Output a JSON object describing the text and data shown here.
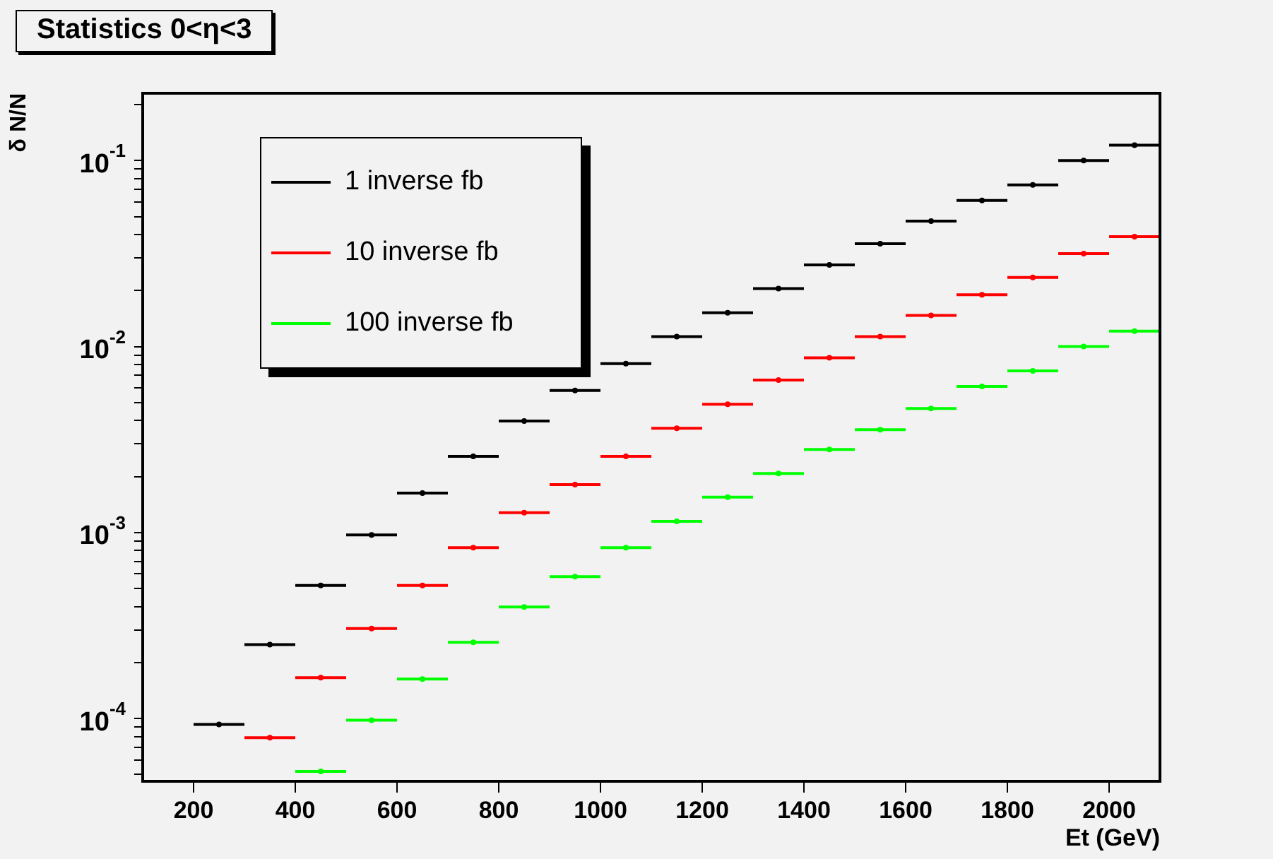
{
  "chart_data": {
    "type": "scatter",
    "title": "Statistics 0<η<3",
    "xlabel": "Et (GeV)",
    "ylabel": "δ N/N",
    "marker": "circle",
    "x": [
      250,
      350,
      450,
      550,
      650,
      750,
      850,
      950,
      1050,
      1150,
      1250,
      1350,
      1450,
      1550,
      1650,
      1750,
      1850,
      1950,
      2050
    ],
    "series": [
      {
        "name": "1 inverse fb",
        "color": "#000000",
        "values": [
          9.3e-05,
          0.00025,
          0.00052,
          0.00097,
          0.00163,
          0.00257,
          0.00398,
          0.0058,
          0.0081,
          0.0113,
          0.0152,
          0.0205,
          0.0275,
          0.0357,
          0.0472,
          0.061,
          0.074,
          0.1,
          0.121
        ],
        "xerrors": [
          50,
          50,
          50,
          50,
          50,
          50,
          50,
          50,
          50,
          50,
          50,
          50,
          50,
          50,
          50,
          50,
          50,
          50,
          50
        ]
      },
      {
        "name": "10 inverse fb",
        "color": "#ff0000",
        "values": [
          null,
          7.9e-05,
          0.000166,
          0.000305,
          0.00052,
          0.00083,
          0.00128,
          0.00181,
          0.00257,
          0.00364,
          0.0049,
          0.0066,
          0.0087,
          0.0113,
          0.0147,
          0.019,
          0.0235,
          0.0316,
          0.039
        ],
        "xerrors": [
          null,
          50,
          50,
          50,
          50,
          50,
          50,
          50,
          50,
          50,
          50,
          50,
          50,
          50,
          50,
          50,
          50,
          50,
          50
        ]
      },
      {
        "name": "100 inverse fb",
        "color": "#00ff00",
        "values": [
          null,
          null,
          5.2e-05,
          9.8e-05,
          0.000163,
          0.000257,
          0.000398,
          0.00058,
          0.00083,
          0.00115,
          0.00155,
          0.00208,
          0.0028,
          0.00357,
          0.00465,
          0.0061,
          0.0074,
          0.01,
          0.0121
        ],
        "xerrors": [
          null,
          null,
          50,
          50,
          50,
          50,
          50,
          50,
          50,
          50,
          50,
          50,
          50,
          50,
          50,
          50,
          50,
          50,
          50
        ]
      }
    ],
    "log": "y",
    "xlim": [
      100,
      2100
    ],
    "ylim": [
      4.6e-05,
      0.23
    ],
    "xticks": [
      200,
      400,
      600,
      800,
      1000,
      1200,
      1400,
      1600,
      1800,
      2000
    ],
    "yticks": [
      {
        "value": 5e-05,
        "label": null
      },
      {
        "value": 6e-05,
        "label": null
      },
      {
        "value": 7e-05,
        "label": null
      },
      {
        "value": 8e-05,
        "label": null
      },
      {
        "value": 9e-05,
        "label": null
      },
      {
        "value": 0.0001,
        "label": "10$^{-4}$"
      },
      {
        "value": 0.0002,
        "label": null
      },
      {
        "value": 0.0003,
        "label": null
      },
      {
        "value": 0.0004,
        "label": null
      },
      {
        "value": 0.0005,
        "label": null
      },
      {
        "value": 0.0006,
        "label": null
      },
      {
        "value": 0.0007,
        "label": null
      },
      {
        "value": 0.0008,
        "label": null
      },
      {
        "value": 0.0009,
        "label": null
      },
      {
        "value": 0.001,
        "label": "10$^{-3}$"
      },
      {
        "value": 0.002,
        "label": null
      },
      {
        "value": 0.003,
        "label": null
      },
      {
        "value": 0.004,
        "label": null
      },
      {
        "value": 0.005,
        "label": null
      },
      {
        "value": 0.006,
        "label": null
      },
      {
        "value": 0.007,
        "label": null
      },
      {
        "value": 0.008,
        "label": null
      },
      {
        "value": 0.009,
        "label": null
      },
      {
        "value": 0.01,
        "label": "10$^{-2}$"
      },
      {
        "value": 0.02,
        "label": null
      },
      {
        "value": 0.03,
        "label": null
      },
      {
        "value": 0.04,
        "label": null
      },
      {
        "value": 0.05,
        "label": null
      },
      {
        "value": 0.06,
        "label": null
      },
      {
        "value": 0.07,
        "label": null
      },
      {
        "value": 0.08,
        "label": null
      },
      {
        "value": 0.09,
        "label": null
      },
      {
        "value": 0.1,
        "label": "10$^{-1}$"
      },
      {
        "value": 0.2,
        "label": null
      }
    ],
    "grid": false,
    "legend": "top left"
  }
}
